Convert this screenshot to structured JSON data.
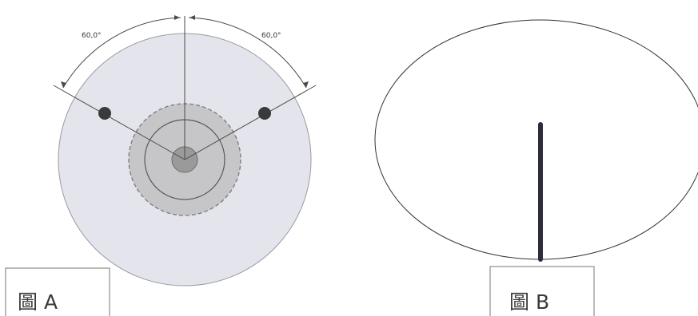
{
  "figure_a": {
    "caption": "圖 A",
    "angle_left": "60,0°",
    "angle_right": "60,0°"
  },
  "figure_b": {
    "caption": "圖 B"
  },
  "colors": {
    "outer_disc": "#e4e4ec",
    "inner_disc": "#c6c6c8",
    "center_dot": "#9a9a9a",
    "marker": "#3a3a3a",
    "line": "#4a4a4a",
    "stem": "#2e2e3a"
  }
}
